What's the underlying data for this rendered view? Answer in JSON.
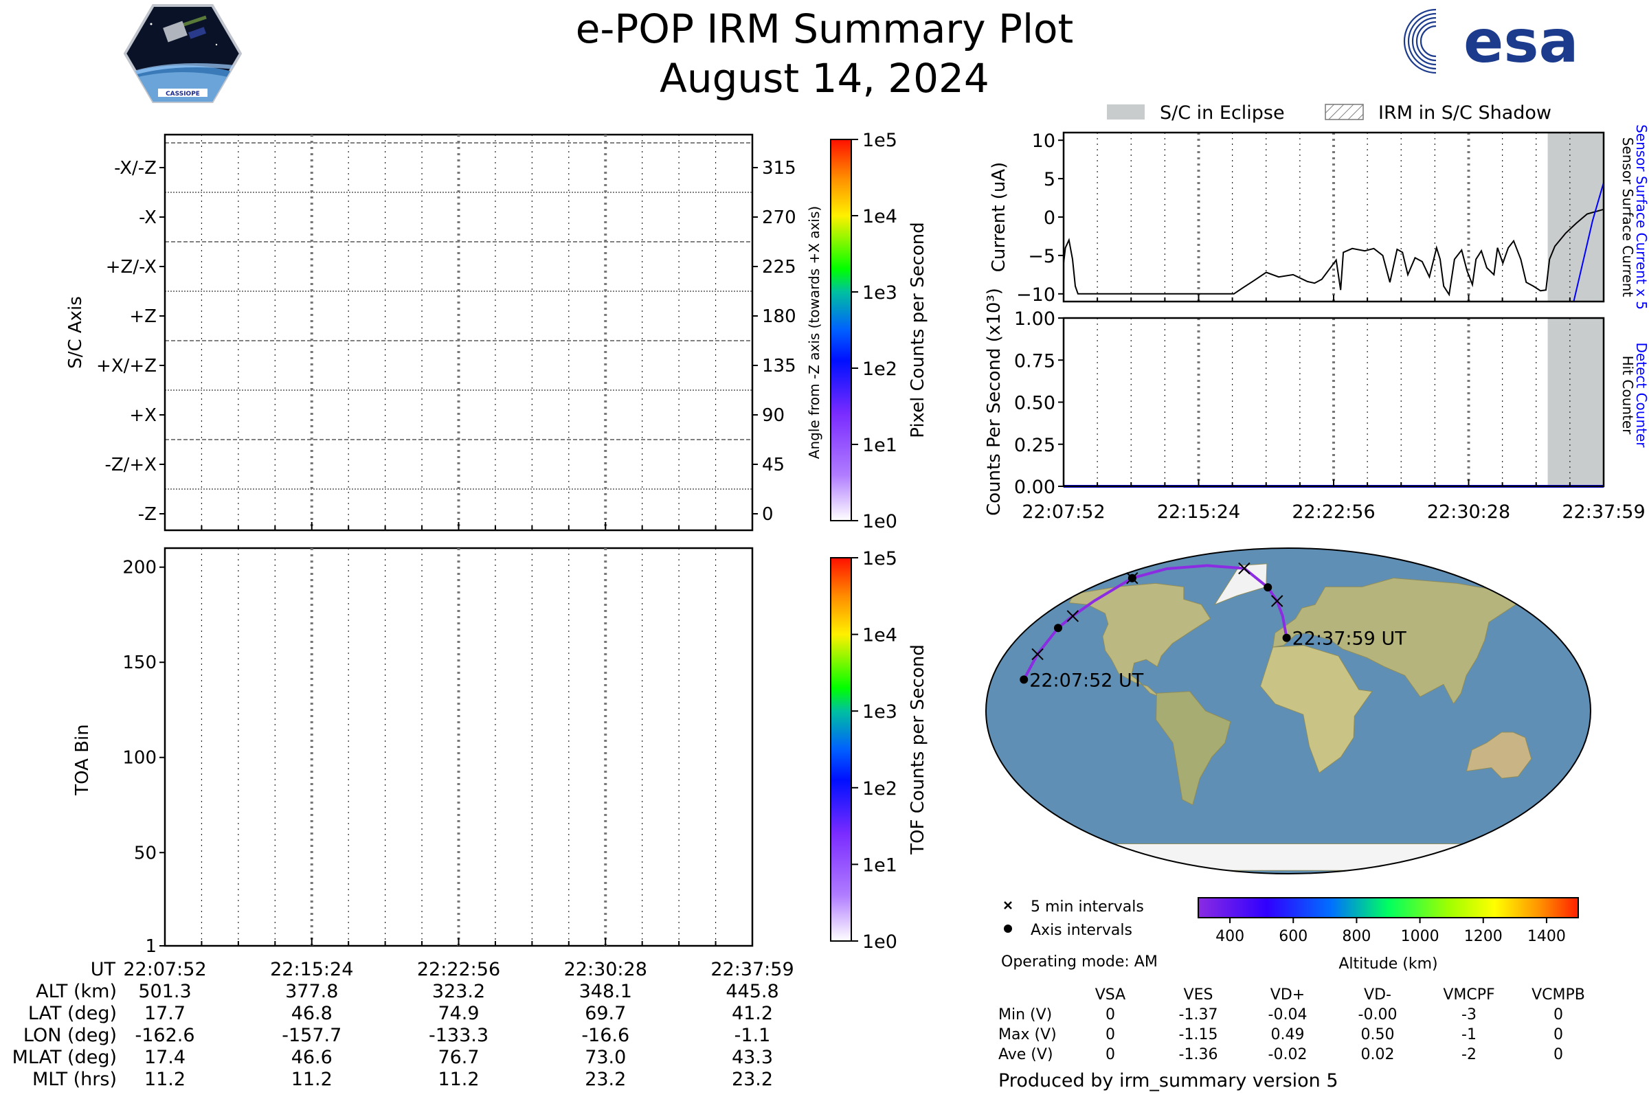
{
  "header": {
    "title": "e-POP IRM Summary Plot",
    "date": "August 14, 2024",
    "left_logo_icon": "cassiope-mission-logo",
    "left_logo_text": "CASSIOPE",
    "right_logo_icon": "esa-logo",
    "right_logo_text": "esa"
  },
  "colors": {
    "eclipse_fill": "#c9cccc",
    "trace_black": "#000000",
    "trace_blue": "#0000ff",
    "orbit_track": "#8b2be2"
  },
  "chart_data": [
    {
      "id": "sc-axis-image",
      "type": "heatmap",
      "ylabel": "S/C Axis",
      "ylabel_right": "Angle from -Z axis (towards +X axis)",
      "y_ticks_left": [
        "-X/-Z",
        "-X",
        "+Z/-X",
        "+Z",
        "+X/+Z",
        "+X",
        "-Z/+X",
        "-Z"
      ],
      "y_ticks_right": [
        "315",
        "270",
        "225",
        "180",
        "135",
        "90",
        "45",
        "0"
      ],
      "ylim": [
        -15,
        345
      ],
      "colorbar": {
        "label": "Pixel Counts per Second",
        "ticks": [
          "1e0",
          "1e1",
          "1e2",
          "1e3",
          "1e4",
          "1e5"
        ],
        "scale": "log"
      },
      "values": []
    },
    {
      "id": "toa-image",
      "type": "heatmap",
      "ylabel": "TOA Bin",
      "y_ticks": [
        "1",
        "50",
        "100",
        "150",
        "200"
      ],
      "ylim": [
        1,
        210
      ],
      "colorbar": {
        "label": "TOF Counts per Second",
        "ticks": [
          "1e0",
          "1e1",
          "1e2",
          "1e3",
          "1e4",
          "1e5"
        ],
        "scale": "log"
      },
      "values": []
    },
    {
      "id": "current-plot",
      "type": "line",
      "ylabel": "Current (uA)",
      "ylim": [
        -11,
        11
      ],
      "y_ticks": [
        "10",
        "5",
        "0",
        "−5",
        "−10"
      ],
      "x_ticks": [
        "22:07:52",
        "22:15:24",
        "22:22:56",
        "22:30:28",
        "22:37:59"
      ],
      "legend": {
        "eclipse": "S/C in Eclipse",
        "shadow": "IRM in S/C Shadow",
        "placement": "top"
      },
      "right_labels": [
        "Sensor Surface Current x 5",
        "Sensor Surface Current"
      ],
      "shaded_eclipse_minutes": [
        27.0,
        30.12
      ],
      "series": [
        {
          "name": "Sensor Surface Current",
          "color": "#000000",
          "x_minutes": [
            0,
            0.1,
            0.3,
            0.5,
            0.65,
            0.8,
            9.5,
            10.0,
            10.6,
            11.3,
            12.0,
            12.8,
            13.6,
            14.0,
            14.4,
            15.2,
            15.45,
            15.6,
            16.1,
            16.8,
            17.3,
            17.8,
            18.2,
            18.6,
            18.9,
            19.2,
            19.6,
            20.0,
            20.4,
            20.8,
            21.0,
            21.2,
            21.5,
            21.8,
            22.2,
            22.5,
            22.8,
            23.0,
            23.3,
            23.6,
            24.0,
            24.2,
            24.5,
            24.8,
            25.1,
            25.5,
            25.8,
            26.2,
            26.6,
            26.9,
            27.1,
            27.4,
            28.0,
            28.6,
            29.2,
            30.12
          ],
          "values": [
            -6,
            -4,
            -3,
            -5.5,
            -9,
            -10,
            -10,
            -9.2,
            -8.3,
            -7.2,
            -7.8,
            -7.5,
            -8.4,
            -8.6,
            -8.1,
            -5.6,
            -9.5,
            -4.6,
            -4.1,
            -4.4,
            -4.1,
            -5.0,
            -8.5,
            -4.2,
            -4.6,
            -7.5,
            -5.3,
            -5.8,
            -7.8,
            -4.0,
            -5.5,
            -9.0,
            -10.1,
            -5.5,
            -4.3,
            -7.0,
            -8.8,
            -5.5,
            -4.4,
            -6.6,
            -7.5,
            -4.0,
            -6.0,
            -4.0,
            -3.1,
            -5.5,
            -8.5,
            -9.0,
            -9.6,
            -9.5,
            -5.5,
            -3.8,
            -2.1,
            -0.8,
            0.4,
            1.0
          ]
        },
        {
          "name": "Sensor Surface Current x 5",
          "color": "#0000ff",
          "x_minutes": [
            28.45,
            29.0,
            29.5,
            30.12
          ],
          "values": [
            -11,
            -5.5,
            -0.5,
            4.5
          ]
        }
      ]
    },
    {
      "id": "counts-plot",
      "type": "line",
      "ylabel": "Counts Per Second (x10³)",
      "ylim": [
        0,
        1
      ],
      "y_ticks": [
        "0.00",
        "0.25",
        "0.50",
        "0.75",
        "1.00"
      ],
      "x_ticks": [
        "22:07:52",
        "22:15:24",
        "22:22:56",
        "22:30:28",
        "22:37:59"
      ],
      "right_labels": [
        "Detect Counter",
        "Hit Counter"
      ],
      "shaded_eclipse_minutes": [
        27.0,
        30.12
      ],
      "series": [
        {
          "name": "Detect Counter",
          "color": "#0000ff",
          "x_minutes": [
            0,
            30.12
          ],
          "values": [
            0,
            0
          ]
        },
        {
          "name": "Hit Counter",
          "color": "#000000",
          "x_minutes": [
            0,
            30.12
          ],
          "values": [
            0,
            0
          ]
        }
      ]
    },
    {
      "id": "orbit-map",
      "type": "scatter",
      "projection": "Robinson",
      "start_label": "22:07:52 UT",
      "end_label": "22:37:59 UT",
      "track_lon": [
        -162.6,
        -160.5,
        -157.7,
        -153.8,
        -147.4,
        -133.3,
        -110.0,
        -75.0,
        -40.0,
        -16.6,
        -8.5,
        -4.0,
        -1.1
      ],
      "track_lat": [
        17.7,
        32.0,
        46.8,
        53.5,
        62.0,
        74.9,
        80.2,
        82.0,
        80.4,
        69.7,
        62.0,
        53.5,
        41.2
      ],
      "five_min_marks": [
        {
          "lon": -160.5,
          "lat": 32.0
        },
        {
          "lon": -153.8,
          "lat": 53.5
        },
        {
          "lon": -133.3,
          "lat": 74.9
        },
        {
          "lon": -40.0,
          "lat": 80.4
        },
        {
          "lon": -8.5,
          "lat": 62.0
        }
      ],
      "axis_marks": [
        {
          "lon": -162.6,
          "lat": 17.7
        },
        {
          "lon": -157.7,
          "lat": 46.8
        },
        {
          "lon": -133.3,
          "lat": 74.9
        },
        {
          "lon": -16.6,
          "lat": 69.7
        },
        {
          "lon": -1.1,
          "lat": 41.2
        }
      ],
      "legend": {
        "five_min": "5 min intervals",
        "axis": "Axis intervals"
      },
      "altitude_colorbar": {
        "label": "Altitude (km)",
        "ticks": [
          "400",
          "600",
          "800",
          "1000",
          "1200",
          "1400"
        ],
        "range": [
          300,
          1500
        ]
      }
    }
  ],
  "ephemeris": {
    "row_labels": [
      "UT",
      "ALT (km)",
      "LAT (deg)",
      "LON (deg)",
      "MLAT (deg)",
      "MLT (hrs)"
    ],
    "columns": [
      [
        "22:07:52",
        "501.3",
        "17.7",
        "-162.6",
        "17.4",
        "11.2"
      ],
      [
        "22:15:24",
        "377.8",
        "46.8",
        "-157.7",
        "46.6",
        "11.2"
      ],
      [
        "22:22:56",
        "323.2",
        "74.9",
        "-133.3",
        "76.7",
        "11.2"
      ],
      [
        "22:30:28",
        "348.1",
        "69.7",
        "-16.6",
        "73.0",
        "23.2"
      ],
      [
        "22:37:59",
        "445.8",
        "41.2",
        "-1.1",
        "43.3",
        "23.2"
      ]
    ]
  },
  "operating_mode": "Operating mode: AM",
  "voltage_table": {
    "headers": [
      "VSA",
      "VES",
      "VD+",
      "VD-",
      "VMCPF",
      "VCMPB"
    ],
    "rows": [
      {
        "label": "Min (V)",
        "values": [
          "0",
          "-1.37",
          "-0.04",
          "-0.00",
          "-3",
          "0"
        ]
      },
      {
        "label": "Max (V)",
        "values": [
          "0",
          "-1.15",
          "0.49",
          "0.50",
          "-1",
          "0"
        ]
      },
      {
        "label": "Ave (V)",
        "values": [
          "0",
          "-1.36",
          "-0.02",
          "0.02",
          "-2",
          "0"
        ]
      }
    ]
  },
  "footer": "Produced by irm_summary version 5"
}
